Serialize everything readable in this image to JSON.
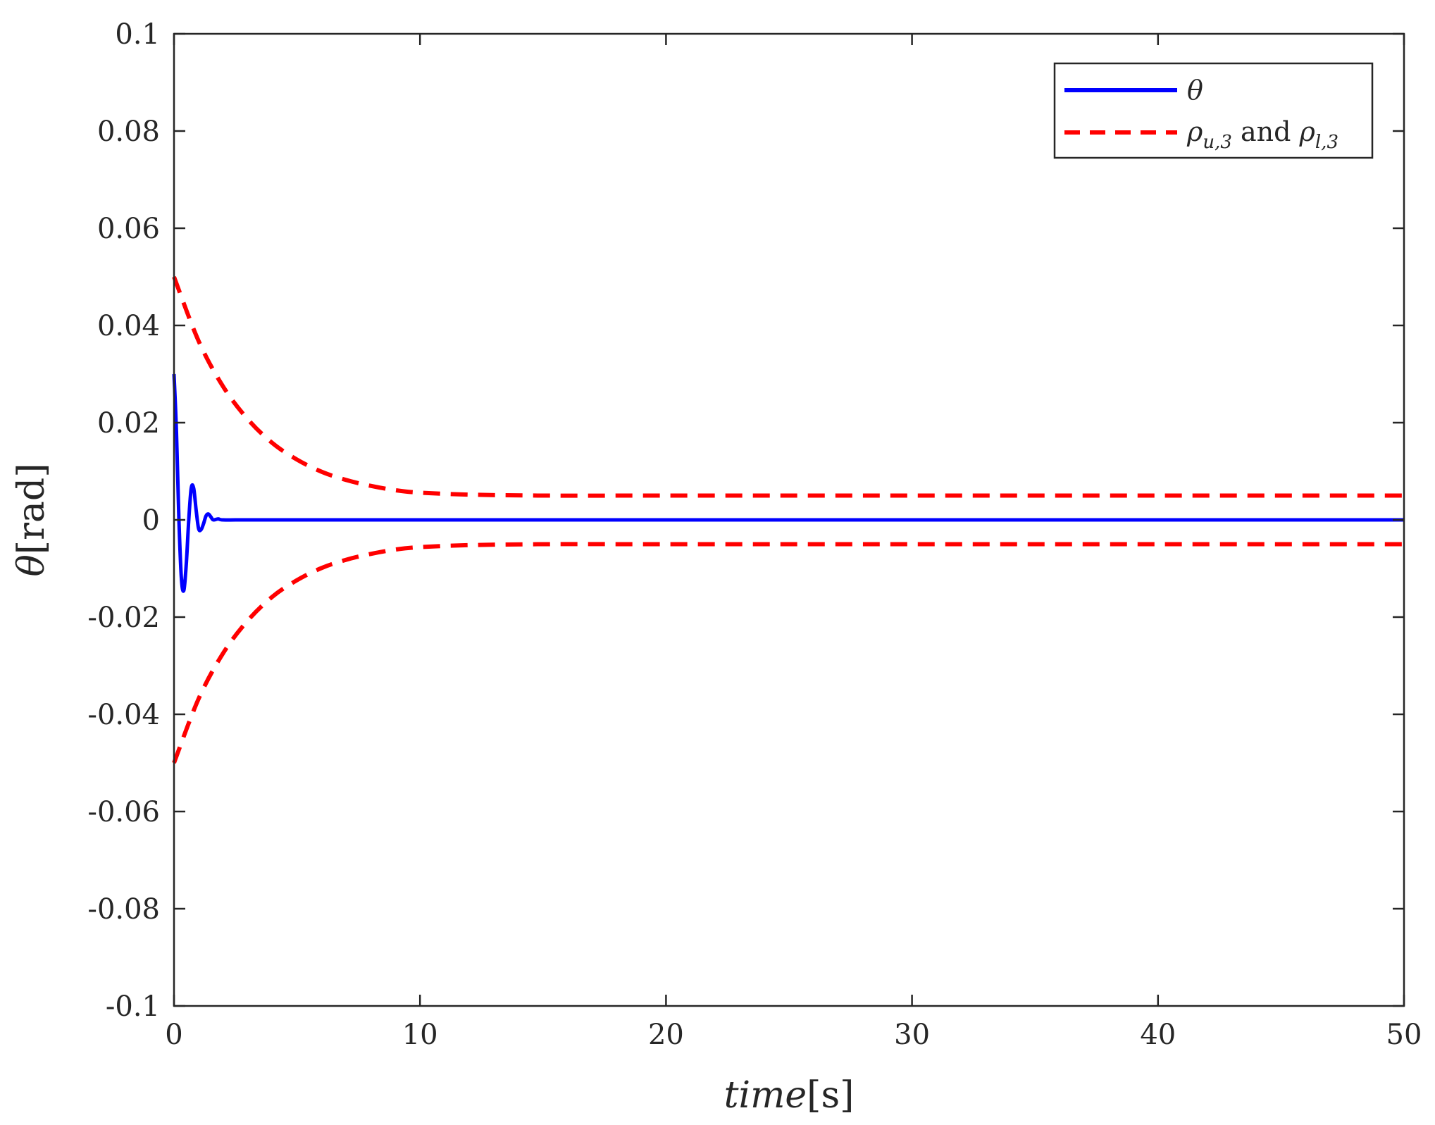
{
  "chart_data": {
    "type": "line",
    "xlabel": "time[s]",
    "ylabel": "θ[rad]",
    "xlim": [
      0,
      50
    ],
    "ylim": [
      -0.1,
      0.1
    ],
    "xticks": [
      "0",
      "10",
      "20",
      "30",
      "40",
      "50"
    ],
    "yticks": [
      "-0.1",
      "-0.08",
      "-0.06",
      "-0.04",
      "-0.02",
      "0",
      "0.02",
      "0.04",
      "0.06",
      "0.08",
      "0.1"
    ],
    "grid": false,
    "legend_position": "top-right",
    "series": [
      {
        "name": "θ",
        "color": "#0000FF",
        "style": "solid",
        "x": [
          0,
          0.1,
          0.2,
          0.3,
          0.4,
          0.5,
          0.6,
          0.7,
          0.8,
          0.9,
          1.0,
          1.1,
          1.2,
          1.3,
          1.4,
          1.5,
          1.6,
          1.8,
          2.0,
          3,
          5,
          10,
          20,
          30,
          40,
          50
        ],
        "y": [
          0.03,
          0.018,
          0.0,
          -0.012,
          -0.0145,
          -0.009,
          0.0,
          0.0065,
          0.0065,
          0.002,
          -0.0018,
          -0.002,
          -0.0008,
          0.0008,
          0.0012,
          0.0006,
          0.0,
          0.0002,
          0.0,
          0.0,
          0.0,
          0.0,
          0.0,
          0.0,
          0.0,
          0.0
        ]
      },
      {
        "name": "ρu,3 and ρl,3",
        "color": "#FF0000",
        "style": "dashed",
        "upper": {
          "x": [
            0,
            1,
            2,
            3,
            4,
            5,
            6,
            7,
            8,
            9,
            10,
            12,
            15,
            20,
            30,
            40,
            50
          ],
          "y": [
            0.05,
            0.0368,
            0.0274,
            0.0207,
            0.0158,
            0.0124,
            0.0099,
            0.0082,
            0.007,
            0.0061,
            0.0056,
            0.0052,
            0.005,
            0.005,
            0.005,
            0.005,
            0.005
          ]
        },
        "lower": {
          "x": [
            0,
            1,
            2,
            3,
            4,
            5,
            6,
            7,
            8,
            9,
            10,
            12,
            15,
            20,
            30,
            40,
            50
          ],
          "y": [
            -0.05,
            -0.0368,
            -0.0274,
            -0.0207,
            -0.0158,
            -0.0124,
            -0.0099,
            -0.0082,
            -0.007,
            -0.0061,
            -0.0056,
            -0.0052,
            -0.005,
            -0.005,
            -0.005,
            -0.005,
            -0.005
          ]
        }
      }
    ],
    "legend": {
      "entries": [
        {
          "label": "θ",
          "color": "#0000FF",
          "style": "solid"
        },
        {
          "label_main": "ρ",
          "sub1": "u,3",
          "mid": " and ",
          "label_main2": "ρ",
          "sub2": "l,3",
          "color": "#FF0000",
          "style": "dashed"
        }
      ]
    }
  }
}
